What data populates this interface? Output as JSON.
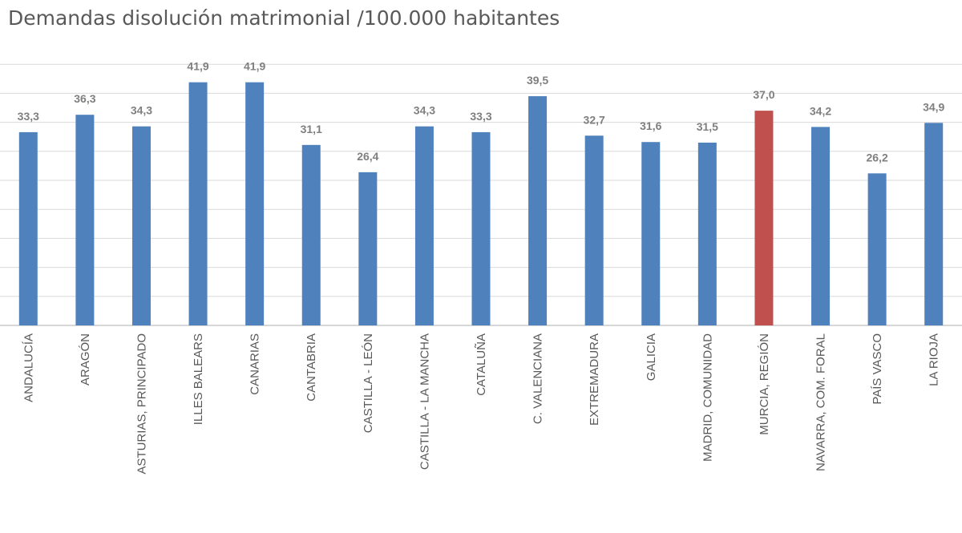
{
  "chart_data": {
    "type": "bar",
    "title": "Demandas disolución matrimonial /100.000 habitantes",
    "categories": [
      "ANDALUCÍA",
      "ARAGÓN",
      "ASTURIAS, PRINCIPADO",
      "ILLES BALEARS",
      "CANARIAS",
      "CANTABRIA",
      "CASTILLA - LEÓN",
      "CASTILLA - LA MANCHA",
      "CATALUÑA",
      "C. VALENCIANA",
      "EXTREMADURA",
      "GALICIA",
      "MADRID, COMUNIDAD",
      "MURCIA, REGIÓN",
      "NAVARRA, COM. FORAL",
      "PAÍS VASCO",
      "LA RIOJA"
    ],
    "values": [
      33.3,
      36.3,
      34.3,
      41.9,
      41.9,
      31.1,
      26.4,
      34.3,
      33.3,
      39.5,
      32.7,
      31.6,
      31.5,
      37.0,
      34.2,
      26.2,
      34.9
    ],
    "data_labels": [
      "33,3",
      "36,3",
      "34,3",
      "41,9",
      "41,9",
      "31,1",
      "26,4",
      "34,3",
      "33,3",
      "39,5",
      "32,7",
      "31,6",
      "31,5",
      "37,0",
      "34,2",
      "26,2",
      "34,9"
    ],
    "highlight_category": "MURCIA, REGIÓN",
    "colors": {
      "bar": "#4f81bd",
      "highlight": "#c0504d"
    },
    "ylim": [
      0,
      45
    ],
    "grid": true,
    "xlabel": "",
    "ylabel": "",
    "x_tick_rotation_deg": -90
  }
}
